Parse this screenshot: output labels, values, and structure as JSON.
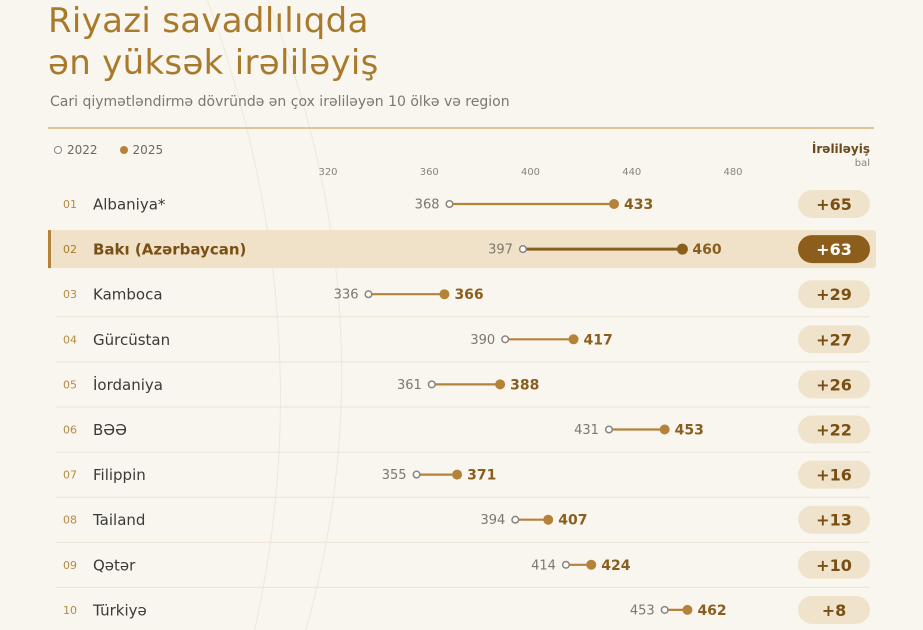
{
  "header": {
    "title_line1": "Riyazi savadlılıqda",
    "title_line2": "ən yüksək irəliləyiş",
    "subtitle": "Cari qiymətləndirmə dövründə ən çox irəliləyən 10 ölkə və region"
  },
  "legend": {
    "old_label": "2022",
    "new_label": "2025"
  },
  "gain_header": {
    "title": "İrəliləyiş",
    "unit": "bal"
  },
  "colors": {
    "accent": "#b5823a",
    "accent_dark": "#8a5e1e",
    "highlight_row": "#efe2c8",
    "highlight_badge": "#8d5d1c",
    "badge": "#efe3cc",
    "text": "#3c3a36"
  },
  "chart_data": {
    "type": "dumbbell",
    "title": "Riyazi savadlılıqda ən yüksək irəliləyiş",
    "subtitle": "Cari qiymətləndirmə dövründə ən çox irəliləyən 10 ölkə və region",
    "x_ticks": [
      320,
      360,
      400,
      440,
      480
    ],
    "series": [
      {
        "name": "2022"
      },
      {
        "name": "2025"
      }
    ],
    "rows": [
      {
        "rank": "01",
        "name": "Albaniya*",
        "v2022": 368,
        "v2025": 433,
        "gain": "+65",
        "highlight": false
      },
      {
        "rank": "02",
        "name": "Bakı (Azərbaycan)",
        "v2022": 397,
        "v2025": 460,
        "gain": "+63",
        "highlight": true
      },
      {
        "rank": "03",
        "name": "Kamboca",
        "v2022": 336,
        "v2025": 366,
        "gain": "+29",
        "highlight": false
      },
      {
        "rank": "04",
        "name": "Gürcüstan",
        "v2022": 390,
        "v2025": 417,
        "gain": "+27",
        "highlight": false
      },
      {
        "rank": "05",
        "name": "İordaniya",
        "v2022": 361,
        "v2025": 388,
        "gain": "+26",
        "highlight": false
      },
      {
        "rank": "06",
        "name": "BƏƏ",
        "v2022": 431,
        "v2025": 453,
        "gain": "+22",
        "highlight": false
      },
      {
        "rank": "07",
        "name": "Filippin",
        "v2022": 355,
        "v2025": 371,
        "gain": "+16",
        "highlight": false
      },
      {
        "rank": "08",
        "name": "Tailand",
        "v2022": 394,
        "v2025": 407,
        "gain": "+13",
        "highlight": false
      },
      {
        "rank": "09",
        "name": "Qətər",
        "v2022": 414,
        "v2025": 424,
        "gain": "+10",
        "highlight": false
      },
      {
        "rank": "10",
        "name": "Türkiyə",
        "v2022": 453,
        "v2025": 462,
        "gain": "+8",
        "highlight": false
      }
    ]
  }
}
